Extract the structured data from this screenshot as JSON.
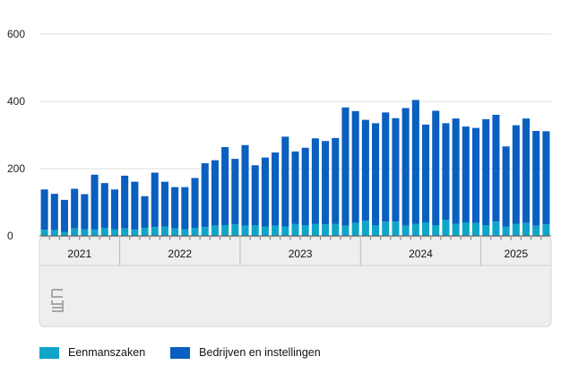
{
  "chart_data": {
    "type": "bar",
    "stacked": true,
    "ylim": [
      0,
      600
    ],
    "yticks": [
      "0",
      "200",
      "400",
      "600"
    ],
    "grid": true,
    "legend_position": "bottom-left",
    "year_labels": [
      "2021",
      "2022",
      "2023",
      "2024",
      "2025"
    ],
    "months_per_year": [
      8,
      12,
      12,
      12,
      7
    ],
    "series": [
      {
        "name": "Eenmanszaken",
        "color": "#0ea5c9",
        "values": [
          18,
          17,
          12,
          22,
          20,
          20,
          24,
          20,
          22,
          18,
          24,
          26,
          28,
          22,
          20,
          24,
          26,
          30,
          32,
          34,
          30,
          32,
          28,
          30,
          28,
          35,
          32,
          36,
          34,
          36,
          30,
          38,
          45,
          32,
          42,
          42,
          30,
          36,
          40,
          32,
          48,
          36,
          40,
          38,
          32,
          42,
          28,
          36,
          38,
          30,
          34
        ]
      },
      {
        "name": "Bedrijven en instellingen",
        "color": "#0a5fbf",
        "values": [
          120,
          108,
          95,
          118,
          104,
          162,
          133,
          118,
          157,
          143,
          94,
          162,
          133,
          123,
          125,
          148,
          190,
          195,
          232,
          195,
          240,
          178,
          205,
          218,
          267,
          216,
          230,
          254,
          248,
          255,
          352,
          333,
          300,
          303,
          325,
          308,
          350,
          368,
          291,
          340,
          287,
          313,
          285,
          283,
          315,
          318,
          238,
          293,
          311,
          282,
          277
        ]
      }
    ]
  },
  "legend": {
    "item1": "Eenmanszaken",
    "item2": "Bedrijven en instellingen"
  },
  "logo": {
    "name": "cbs-logo",
    "text": "cbs"
  }
}
